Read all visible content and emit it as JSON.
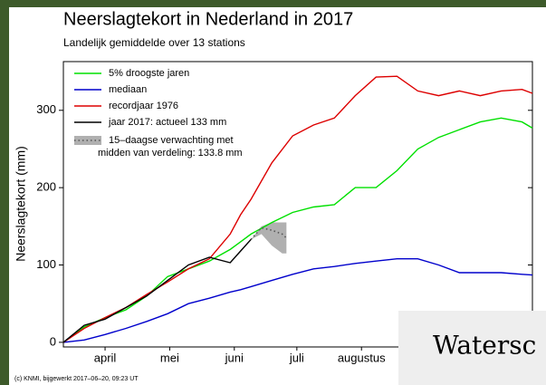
{
  "chart_data": {
    "type": "line",
    "title": "Neerslagtekort in Nederland in 2017",
    "subtitle": "Landelijk gemiddelde over 13 stations",
    "ylabel": "Neerslagtekort (mm)",
    "footer": "(c) KNMI, bijgewerkt 2017–06–20, 09:23 UT",
    "x": [
      0,
      10,
      20,
      30,
      40,
      50,
      60,
      70,
      80,
      85,
      90,
      100,
      110,
      120,
      130,
      140,
      150,
      160,
      170,
      180,
      190,
      200,
      210,
      220,
      225
    ],
    "xlim": [
      0,
      225
    ],
    "xticks": [
      {
        "value": 20,
        "label": "april"
      },
      {
        "value": 51,
        "label": "mei"
      },
      {
        "value": 82,
        "label": "juni"
      },
      {
        "value": 112,
        "label": "juli"
      },
      {
        "value": 143,
        "label": "augustus"
      }
    ],
    "ylim": [
      -6,
      363
    ],
    "yticks": [
      0,
      100,
      200,
      300
    ],
    "series": [
      {
        "name": "5% droogste jaren",
        "color": "#00e000",
        "values": [
          0,
          20,
          32,
          42,
          60,
          85,
          95,
          105,
          120,
          130,
          140,
          155,
          168,
          175,
          178,
          200,
          200,
          222,
          250,
          265,
          275,
          285,
          290,
          285,
          277
        ]
      },
      {
        "name": "mediaan",
        "color": "#0000cc",
        "values": [
          0,
          3,
          10,
          18,
          27,
          37,
          50,
          57,
          65,
          68,
          72,
          80,
          88,
          95,
          98,
          102,
          105,
          108,
          108,
          100,
          90,
          90,
          90,
          88,
          87
        ]
      },
      {
        "name": "recordjaar 1976",
        "color": "#dd0000",
        "values": [
          0,
          18,
          32,
          45,
          62,
          78,
          95,
          108,
          140,
          165,
          185,
          232,
          267,
          281,
          290,
          319,
          343,
          344,
          325,
          319,
          325,
          319,
          325,
          327,
          322
        ]
      },
      {
        "name": "jaar 2017: actueel 133 mm",
        "color": "#000000",
        "values": [
          0,
          22,
          30,
          45,
          60,
          80,
          100,
          110,
          103,
          118,
          133,
          null,
          null,
          null,
          null,
          null,
          null,
          null,
          null,
          null,
          null,
          null,
          null,
          null,
          null
        ]
      }
    ],
    "forecast": {
      "name": [
        "15–daagse verwachting met",
        "midden van verdeling: 133.8 mm"
      ],
      "color": "#b0b0b0",
      "x": [
        90,
        95,
        100,
        105,
        107
      ],
      "values": [
        133,
        148,
        145,
        140,
        135
      ],
      "lower": [
        133,
        140,
        125,
        115,
        115
      ],
      "upper": [
        133,
        150,
        155,
        155,
        155
      ]
    },
    "overlay_text": "Watersc"
  }
}
